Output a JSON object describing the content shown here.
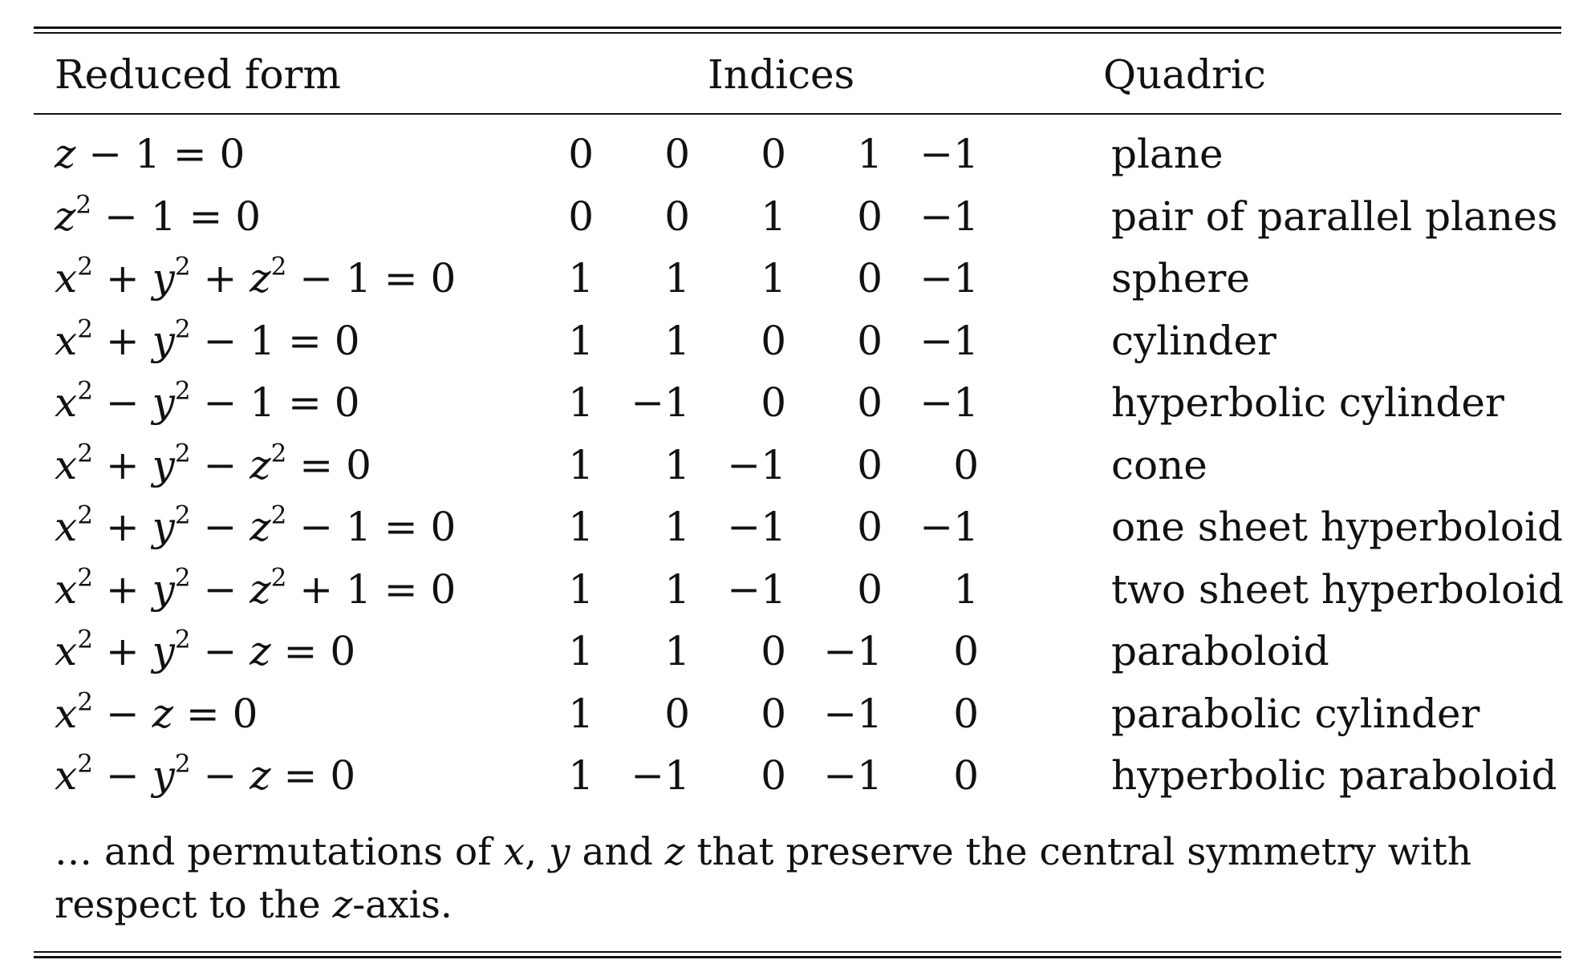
{
  "table": {
    "headers": {
      "reduced_form": "Reduced form",
      "indices": "Indices",
      "quadric": "Quadric"
    },
    "rows": [
      {
        "form_html": "z − <span class=\"up\">1 = 0</span>",
        "indices": [
          "0",
          "0",
          "0",
          "1",
          "−1"
        ],
        "quadric": "plane"
      },
      {
        "form_html": "z<sup class=\"up\">2</sup> − <span class=\"up\">1 = 0</span>",
        "indices": [
          "0",
          "0",
          "1",
          "0",
          "−1"
        ],
        "quadric": "pair of parallel planes"
      },
      {
        "form_html": "x<sup class=\"up\">2</sup> + y<sup class=\"up\">2</sup> + z<sup class=\"up\">2</sup> − <span class=\"up\">1 = 0</span>",
        "indices": [
          "1",
          "1",
          "1",
          "0",
          "−1"
        ],
        "quadric": "sphere"
      },
      {
        "form_html": "x<sup class=\"up\">2</sup> + y<sup class=\"up\">2</sup> − <span class=\"up\">1 = 0</span>",
        "indices": [
          "1",
          "1",
          "0",
          "0",
          "−1"
        ],
        "quadric": "cylinder"
      },
      {
        "form_html": "x<sup class=\"up\">2</sup> − y<sup class=\"up\">2</sup> − <span class=\"up\">1 = 0</span>",
        "indices": [
          "1",
          "−1",
          "0",
          "0",
          "−1"
        ],
        "quadric": "hyperbolic cylinder"
      },
      {
        "form_html": "x<sup class=\"up\">2</sup> + y<sup class=\"up\">2</sup> − z<sup class=\"up\">2</sup> <span class=\"up\">= 0</span>",
        "indices": [
          "1",
          "1",
          "−1",
          "0",
          "0"
        ],
        "quadric": "cone"
      },
      {
        "form_html": "x<sup class=\"up\">2</sup> + y<sup class=\"up\">2</sup> − z<sup class=\"up\">2</sup> − <span class=\"up\">1 = 0</span>",
        "indices": [
          "1",
          "1",
          "−1",
          "0",
          "−1"
        ],
        "quadric": "one sheet hyperboloid"
      },
      {
        "form_html": "x<sup class=\"up\">2</sup> + y<sup class=\"up\">2</sup> − z<sup class=\"up\">2</sup> + <span class=\"up\">1 = 0</span>",
        "indices": [
          "1",
          "1",
          "−1",
          "0",
          "1"
        ],
        "quadric": "two sheet hyperboloid"
      },
      {
        "form_html": "x<sup class=\"up\">2</sup> + y<sup class=\"up\">2</sup> − z <span class=\"up\">= 0</span>",
        "indices": [
          "1",
          "1",
          "0",
          "−1",
          "0"
        ],
        "quadric": "paraboloid"
      },
      {
        "form_html": "x<sup class=\"up\">2</sup> − z <span class=\"up\">= 0</span>",
        "indices": [
          "1",
          "0",
          "0",
          "−1",
          "0"
        ],
        "quadric": "parabolic cylinder"
      },
      {
        "form_html": "x<sup class=\"up\">2</sup> − y<sup class=\"up\">2</sup> − z <span class=\"up\">= 0</span>",
        "indices": [
          "1",
          "−1",
          "0",
          "−1",
          "0"
        ],
        "quadric": "hyperbolic paraboloid"
      }
    ],
    "footnote_html": "… and permutations of <i>x</i>, <i>y</i> and <i>z</i> that preserve the central symmetry with respect to the <i>z</i>-axis."
  }
}
